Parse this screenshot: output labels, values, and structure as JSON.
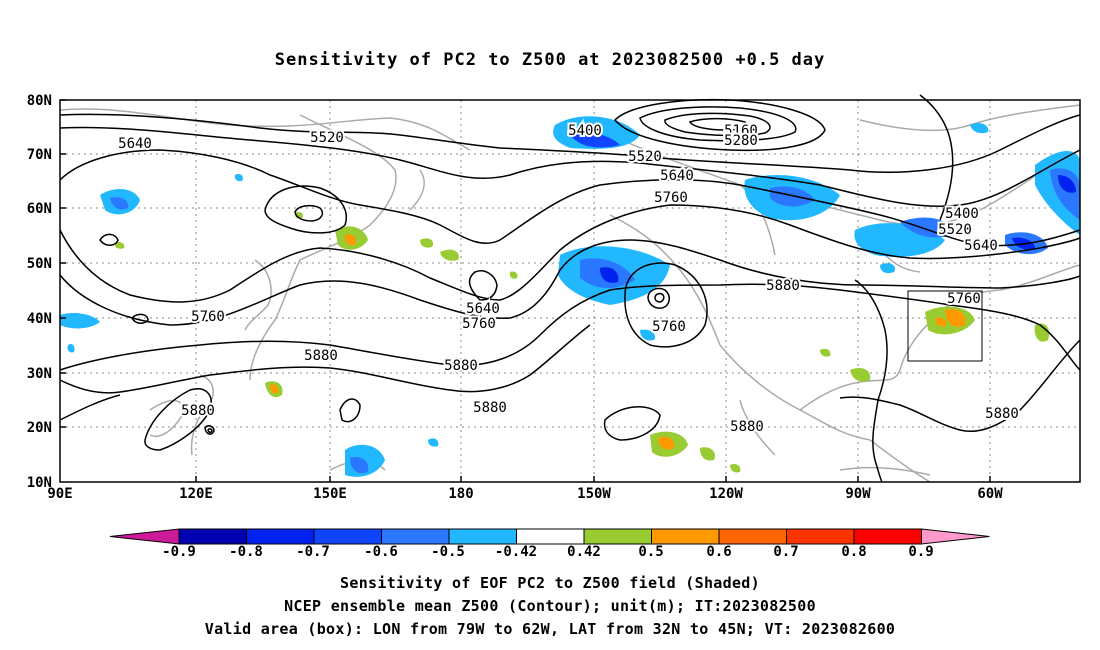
{
  "title": "Sensitivity of PC2 to Z500 at 2023082500 +0.5 day",
  "lat_labels": [
    "80N",
    "70N",
    "60N",
    "50N",
    "40N",
    "30N",
    "20N",
    "10N"
  ],
  "lon_labels": [
    "90E",
    "120E",
    "150E",
    "180",
    "150W",
    "120W",
    "90W",
    "60W"
  ],
  "contour_labels": [
    "5640",
    "5520",
    "5400",
    "5160",
    "5280",
    "5520",
    "5640",
    "5760",
    "5400",
    "5520",
    "5640",
    "5760",
    "5640",
    "5760",
    "5760",
    "5880",
    "5880",
    "5880",
    "5880",
    "5880",
    "5880",
    "5760",
    "5880",
    "5880",
    "5760"
  ],
  "colorbar": {
    "labels": [
      "-0.9",
      "-0.8",
      "-0.7",
      "-0.6",
      "-0.5",
      "-0.42",
      "0.42",
      "0.5",
      "0.6",
      "0.7",
      "0.8",
      "0.9"
    ],
    "colors": [
      "#0000b0",
      "#0022ee",
      "#1144ff",
      "#2a78ff",
      "#22b8ff",
      "#ffffff",
      "#99cc33",
      "#ff9900",
      "#ff6600",
      "#ff3300",
      "#ff0000"
    ],
    "low_end_color": "#cc1a99",
    "high_end_color": "#ff99cc"
  },
  "captions": [
    "Sensitivity of EOF PC2 to Z500 field (Shaded)",
    "NCEP ensemble mean Z500 (Contour); unit(m); IT:2023082500",
    "Valid area (box): LON from 79W to 62W, LAT from 32N to 45N; VT: 2023082600"
  ]
}
